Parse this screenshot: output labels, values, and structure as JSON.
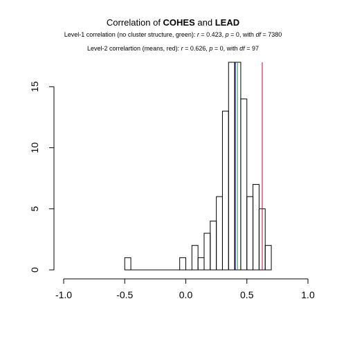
{
  "title": {
    "prefix": "Correlation of ",
    "var1": "COHES",
    "mid": " and ",
    "var2": "LEAD"
  },
  "subtitle1": {
    "prefix": "Level-1 correlation (no cluster structure, green): ",
    "r_sym": "r",
    "r_text": " = 0.423, ",
    "p_sym": "p",
    "p_text": " = 0, with ",
    "df_sym": "df",
    "df_text": " = 7380"
  },
  "subtitle2": {
    "prefix": "Level-2 correlartion (means, red): ",
    "r_sym": "r",
    "r_text": " = 0.626, ",
    "p_sym": "p",
    "p_text": " = 0, with ",
    "df_sym": "df",
    "df_text": " = 97"
  },
  "chart_data": {
    "type": "bar",
    "subtype": "histogram",
    "bin_width": 0.05,
    "bins": [
      {
        "from": -0.5,
        "to": -0.45,
        "count": 1
      },
      {
        "from": -0.05,
        "to": 0.0,
        "count": 1
      },
      {
        "from": 0.05,
        "to": 0.1,
        "count": 2
      },
      {
        "from": 0.1,
        "to": 0.15,
        "count": 1
      },
      {
        "from": 0.15,
        "to": 0.2,
        "count": 3
      },
      {
        "from": 0.2,
        "to": 0.25,
        "count": 4
      },
      {
        "from": 0.25,
        "to": 0.3,
        "count": 6
      },
      {
        "from": 0.3,
        "to": 0.35,
        "count": 13
      },
      {
        "from": 0.35,
        "to": 0.4,
        "count": 17
      },
      {
        "from": 0.4,
        "to": 0.45,
        "count": 17
      },
      {
        "from": 0.45,
        "to": 0.5,
        "count": 14
      },
      {
        "from": 0.5,
        "to": 0.55,
        "count": 6
      },
      {
        "from": 0.55,
        "to": 0.6,
        "count": 7
      },
      {
        "from": 0.6,
        "to": 0.65,
        "count": 5
      },
      {
        "from": 0.65,
        "to": 0.7,
        "count": 2
      }
    ],
    "xlim": [
      -1.0,
      1.0
    ],
    "ylim": [
      0,
      17
    ],
    "x_ticks": [
      -1.0,
      -0.5,
      0.0,
      0.5,
      1.0
    ],
    "x_tick_labels": [
      "-1.0",
      "-0.5",
      "0.0",
      "0.5",
      "1.0"
    ],
    "y_ticks": [
      0,
      5,
      10,
      15
    ],
    "y_tick_labels": [
      "0",
      "5",
      "10",
      "15"
    ],
    "vlines": [
      {
        "x": 0.423,
        "color": "#00b000"
      },
      {
        "x": 0.626,
        "color": "#b01030"
      }
    ],
    "mean_line": {
      "x": 0.405,
      "color": "#0000cc"
    },
    "grid": false
  }
}
